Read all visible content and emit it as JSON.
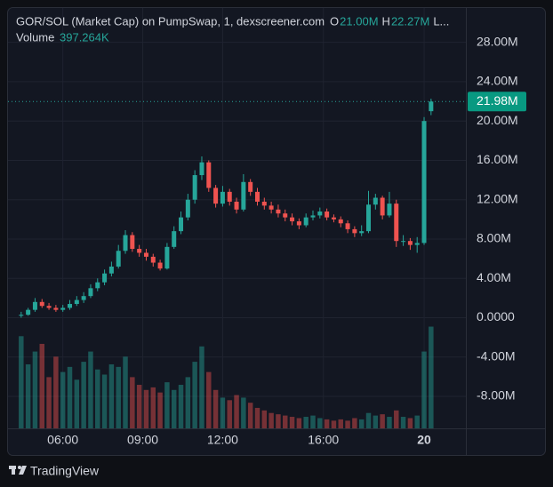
{
  "chart_data": {
    "type": "candlestick",
    "title": "GOR/SOL (Market Cap) on PumpSwap, 1, dexscreener.com",
    "legend": {
      "open_key": "O",
      "open": "21.00M",
      "high_key": "H",
      "high": "22.27M",
      "low_key": "L..."
    },
    "volume_title": "Volume",
    "volume_legend": "397.264K",
    "open": [
      0.2,
      0.3,
      0.8,
      1.6,
      1.2,
      1.0,
      0.8,
      1.0,
      1.4,
      1.8,
      2.2,
      3.0,
      3.6,
      4.5,
      5.2,
      6.8,
      8.4,
      7.0,
      6.6,
      6.2,
      5.6,
      5.0,
      7.2,
      8.8,
      10.2,
      12.0,
      14.5,
      15.8,
      13.2,
      11.6,
      12.8,
      11.8,
      11.0,
      13.8,
      12.8,
      11.8,
      11.4,
      11.0,
      10.6,
      10.2,
      9.8,
      9.4,
      10.2,
      10.4,
      10.8,
      10.2,
      10.0,
      9.6,
      9.0,
      8.6,
      8.8,
      11.5,
      12.2,
      10.4,
      11.6,
      7.8,
      7.8,
      7.4,
      7.6,
      21.0
    ],
    "high": [
      0.6,
      1.0,
      2.0,
      1.9,
      1.5,
      1.3,
      1.3,
      1.8,
      2.2,
      2.6,
      3.4,
      4.0,
      4.9,
      5.7,
      7.4,
      8.9,
      8.7,
      7.4,
      7.0,
      6.5,
      5.9,
      7.6,
      9.3,
      10.8,
      12.6,
      15.0,
      16.4,
      16.0,
      13.5,
      13.4,
      13.1,
      12.2,
      14.6,
      14.1,
      13.2,
      12.2,
      11.8,
      11.5,
      11.0,
      10.6,
      10.1,
      10.6,
      10.9,
      11.2,
      11.1,
      10.5,
      10.3,
      9.9,
      9.3,
      9.4,
      12.9,
      12.6,
      12.4,
      12.8,
      12.0,
      8.4,
      8.1,
      8.2,
      20.4,
      22.27
    ],
    "low": [
      0.0,
      0.2,
      0.6,
      1.0,
      0.8,
      0.6,
      0.6,
      0.8,
      1.2,
      1.5,
      2.0,
      2.7,
      3.3,
      4.2,
      5.0,
      6.5,
      6.7,
      6.2,
      5.8,
      5.2,
      4.8,
      4.9,
      7.0,
      8.5,
      9.9,
      11.6,
      14.0,
      12.8,
      11.2,
      11.3,
      11.4,
      10.6,
      10.8,
      12.4,
      11.4,
      11.0,
      10.6,
      10.2,
      9.8,
      9.4,
      9.0,
      9.2,
      9.9,
      10.1,
      9.9,
      9.7,
      9.2,
      8.6,
      8.2,
      8.3,
      8.6,
      11.0,
      10.0,
      10.2,
      7.2,
      7.3,
      6.9,
      6.6,
      7.4,
      20.6
    ],
    "close": [
      0.3,
      0.8,
      1.6,
      1.2,
      1.0,
      0.8,
      1.0,
      1.4,
      1.8,
      2.2,
      3.0,
      3.6,
      4.5,
      5.2,
      6.8,
      8.4,
      7.0,
      6.6,
      6.2,
      5.6,
      5.0,
      7.2,
      8.8,
      10.2,
      12.0,
      14.5,
      15.8,
      13.2,
      11.6,
      12.8,
      11.8,
      11.0,
      13.8,
      12.8,
      11.8,
      11.4,
      11.0,
      10.6,
      10.2,
      9.8,
      9.4,
      10.2,
      10.4,
      10.8,
      10.2,
      10.0,
      9.6,
      9.0,
      8.6,
      8.8,
      11.5,
      12.2,
      10.4,
      11.6,
      7.8,
      7.8,
      7.4,
      7.6,
      20.0,
      21.98
    ],
    "volume": [
      360,
      250,
      300,
      330,
      200,
      280,
      220,
      240,
      190,
      260,
      300,
      230,
      210,
      250,
      240,
      280,
      200,
      170,
      150,
      160,
      140,
      180,
      150,
      170,
      200,
      260,
      320,
      220,
      150,
      120,
      110,
      130,
      120,
      100,
      80,
      70,
      60,
      55,
      50,
      45,
      40,
      45,
      50,
      40,
      35,
      30,
      35,
      30,
      40,
      35,
      60,
      50,
      55,
      45,
      70,
      45,
      40,
      50,
      300,
      397.264
    ],
    "volume_ylim": [
      0,
      420
    ],
    "up_color": "#26a69a",
    "down_color": "#ef5350",
    "xlim": [
      0,
      64.5
    ],
    "xticks": [
      {
        "value": 7,
        "label": "06:00"
      },
      {
        "value": 18.5,
        "label": "09:00"
      },
      {
        "value": 30,
        "label": "12:00"
      },
      {
        "value": 44.5,
        "label": "16:00"
      },
      {
        "value": 59,
        "label": "20"
      }
    ],
    "ylim": [
      -11.25,
      30.5
    ],
    "yticks": [
      {
        "value": 28,
        "label": "28.00M"
      },
      {
        "value": 24,
        "label": "24.00M"
      },
      {
        "value": 20,
        "label": "20.00M"
      },
      {
        "value": 16,
        "label": "16.00M"
      },
      {
        "value": 12,
        "label": "12.00M"
      },
      {
        "value": 8,
        "label": "8.00M"
      },
      {
        "value": 4,
        "label": "4.00M"
      },
      {
        "value": 0,
        "label": "0.0000"
      },
      {
        "value": -4,
        "label": "-4.00M"
      },
      {
        "value": -8,
        "label": "-8.00M"
      }
    ],
    "last_price": {
      "value": 21.98,
      "label": "21.98M"
    },
    "grid": true,
    "branding": "TradingView"
  }
}
